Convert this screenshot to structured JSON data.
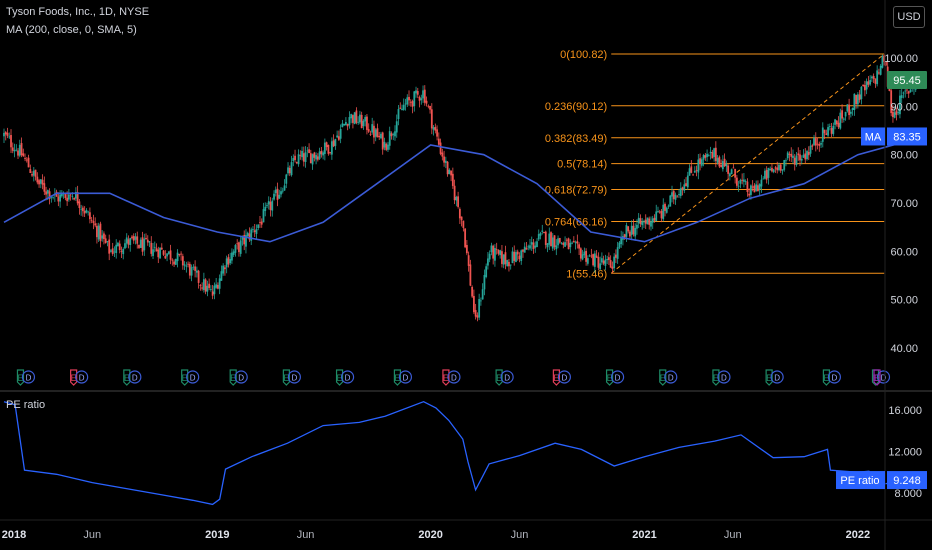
{
  "header": {
    "title": "Tyson Foods, Inc., 1D, NYSE",
    "indicator": "MA (200, close, 0, SMA, 5)",
    "currency": "USD"
  },
  "colors": {
    "up": "#26a69a",
    "down": "#ef5350",
    "ma": "#3b5bd6",
    "fib": "#f7931a",
    "pe": "#2962ff",
    "price_badge": "#2e8b57",
    "ma_badge": "#2962ff",
    "earnings_green": "#1e8a66",
    "earnings_red": "#e03e5a",
    "earnings_purple": "#9c27b0"
  },
  "chart_data": [
    {
      "type": "candlestick",
      "title": "Tyson Foods, Inc., 1D, NYSE",
      "x_range": [
        "2018-01-01",
        "2022-05-01"
      ],
      "ylim": [
        35,
        110
      ],
      "y_ticks": [
        "100.00",
        "90.00",
        "80.00",
        "70.00",
        "60.00",
        "50.00",
        "40.00"
      ],
      "x_ticks": [
        "2018",
        "Jun",
        "2019",
        "Jun",
        "2020",
        "Jun",
        "2021",
        "Jun",
        "2022"
      ],
      "price_path": [
        [
          "2018-01-01",
          84
        ],
        [
          "2018-02-01",
          80
        ],
        [
          "2018-03-01",
          74
        ],
        [
          "2018-04-01",
          71
        ],
        [
          "2018-05-01",
          72
        ],
        [
          "2018-06-01",
          66
        ],
        [
          "2018-07-01",
          60
        ],
        [
          "2018-08-01",
          62
        ],
        [
          "2018-09-01",
          61
        ],
        [
          "2018-10-01",
          60
        ],
        [
          "2018-11-01",
          58
        ],
        [
          "2018-12-01",
          54
        ],
        [
          "2018-12-24",
          51
        ],
        [
          "2019-01-15",
          58
        ],
        [
          "2019-02-15",
          62
        ],
        [
          "2019-03-15",
          66
        ],
        [
          "2019-04-15",
          72
        ],
        [
          "2019-05-15",
          79
        ],
        [
          "2019-06-15",
          80
        ],
        [
          "2019-07-15",
          82
        ],
        [
          "2019-08-15",
          88
        ],
        [
          "2019-09-15",
          86
        ],
        [
          "2019-10-15",
          82
        ],
        [
          "2019-11-15",
          90
        ],
        [
          "2019-12-20",
          93
        ],
        [
          "2020-01-10",
          84
        ],
        [
          "2020-02-01",
          76
        ],
        [
          "2020-02-25",
          66
        ],
        [
          "2020-03-18",
          45
        ],
        [
          "2020-04-10",
          60
        ],
        [
          "2020-05-10",
          58
        ],
        [
          "2020-06-10",
          60
        ],
        [
          "2020-07-10",
          63
        ],
        [
          "2020-08-10",
          62
        ],
        [
          "2020-09-10",
          60
        ],
        [
          "2020-10-10",
          58
        ],
        [
          "2020-11-05",
          57
        ],
        [
          "2020-12-01",
          64
        ],
        [
          "2021-01-01",
          66
        ],
        [
          "2021-02-01",
          68
        ],
        [
          "2021-03-01",
          73
        ],
        [
          "2021-04-01",
          78
        ],
        [
          "2021-05-01",
          80
        ],
        [
          "2021-06-01",
          76
        ],
        [
          "2021-07-01",
          72
        ],
        [
          "2021-08-01",
          76
        ],
        [
          "2021-09-01",
          79
        ],
        [
          "2021-10-01",
          80
        ],
        [
          "2021-11-01",
          84
        ],
        [
          "2021-12-01",
          87
        ],
        [
          "2022-01-01",
          92
        ],
        [
          "2022-02-01",
          96
        ],
        [
          "2022-02-15",
          100
        ],
        [
          "2022-03-01",
          88
        ],
        [
          "2022-03-20",
          92
        ],
        [
          "2022-04-12",
          95.45
        ]
      ],
      "ma_path": [
        [
          "2018-01-01",
          66
        ],
        [
          "2018-04-01",
          72
        ],
        [
          "2018-07-01",
          72
        ],
        [
          "2018-10-01",
          67
        ],
        [
          "2019-01-01",
          64
        ],
        [
          "2019-04-01",
          62
        ],
        [
          "2019-07-01",
          66
        ],
        [
          "2019-10-01",
          74
        ],
        [
          "2020-01-01",
          82
        ],
        [
          "2020-04-01",
          80
        ],
        [
          "2020-07-01",
          74
        ],
        [
          "2020-10-01",
          64
        ],
        [
          "2021-01-01",
          62
        ],
        [
          "2021-04-01",
          66
        ],
        [
          "2021-07-01",
          71
        ],
        [
          "2021-10-01",
          74
        ],
        [
          "2022-01-01",
          80
        ],
        [
          "2022-04-12",
          83.35
        ]
      ],
      "fib": {
        "start": "2020-11-05",
        "end": "2022-02-15",
        "levels": [
          {
            "label": "0(100.82)",
            "value": 100.82
          },
          {
            "label": "0.236(90.12)",
            "value": 90.12
          },
          {
            "label": "0.382(83.49)",
            "value": 83.49
          },
          {
            "label": "0.5(78.14)",
            "value": 78.14
          },
          {
            "label": "0.618(72.79)",
            "value": 72.79
          },
          {
            "label": "0.764(66.16)",
            "value": 66.16
          },
          {
            "label": "1(55.46)",
            "value": 55.46
          }
        ]
      },
      "last_price": {
        "value": 95.45,
        "label": "95.45"
      },
      "ma_last": {
        "name": "MA",
        "value": 83.35,
        "label": "83.35"
      },
      "events": [
        {
          "date": "2018-02-05",
          "type": "E"
        },
        {
          "date": "2018-05-07",
          "type": "E",
          "red": true
        },
        {
          "date": "2018-08-06",
          "type": "E"
        },
        {
          "date": "2018-11-13",
          "type": "E"
        },
        {
          "date": "2019-02-04",
          "type": "E"
        },
        {
          "date": "2019-05-06",
          "type": "E"
        },
        {
          "date": "2019-08-05",
          "type": "E"
        },
        {
          "date": "2019-11-12",
          "type": "E"
        },
        {
          "date": "2020-02-03",
          "type": "E",
          "red": true
        },
        {
          "date": "2020-05-04",
          "type": "E"
        },
        {
          "date": "2020-08-10",
          "type": "E",
          "red": true
        },
        {
          "date": "2020-11-09",
          "type": "E"
        },
        {
          "date": "2021-02-08",
          "type": "E"
        },
        {
          "date": "2021-05-10",
          "type": "E"
        },
        {
          "date": "2021-08-09",
          "type": "E"
        },
        {
          "date": "2021-11-15",
          "type": "E"
        },
        {
          "date": "2022-02-07",
          "type": "E"
        }
      ]
    },
    {
      "type": "line",
      "title": "PE ratio",
      "ylim": [
        6.6,
        17.4
      ],
      "y_ticks": [
        "16.000",
        "12.000",
        "8.000"
      ],
      "series": [
        {
          "name": "PE ratio",
          "points": [
            [
              "2018-01-01",
              16.8
            ],
            [
              "2018-01-20",
              16.5
            ],
            [
              "2018-02-05",
              10.2
            ],
            [
              "2018-04-01",
              9.8
            ],
            [
              "2018-06-01",
              9.0
            ],
            [
              "2018-08-01",
              8.4
            ],
            [
              "2018-10-01",
              7.8
            ],
            [
              "2018-11-20",
              7.3
            ],
            [
              "2018-12-24",
              6.9
            ],
            [
              "2019-01-05",
              7.4
            ],
            [
              "2019-01-15",
              10.3
            ],
            [
              "2019-03-01",
              11.5
            ],
            [
              "2019-05-01",
              12.8
            ],
            [
              "2019-07-01",
              14.5
            ],
            [
              "2019-09-01",
              14.8
            ],
            [
              "2019-10-15",
              15.4
            ],
            [
              "2019-12-20",
              16.8
            ],
            [
              "2020-01-10",
              16.2
            ],
            [
              "2020-02-01",
              15.0
            ],
            [
              "2020-02-25",
              13.2
            ],
            [
              "2020-03-05",
              11.0
            ],
            [
              "2020-03-18",
              8.3
            ],
            [
              "2020-04-10",
              10.8
            ],
            [
              "2020-06-01",
              11.6
            ],
            [
              "2020-08-01",
              12.8
            ],
            [
              "2020-09-15",
              12.2
            ],
            [
              "2020-11-10",
              10.6
            ],
            [
              "2021-01-01",
              11.5
            ],
            [
              "2021-03-01",
              12.4
            ],
            [
              "2021-05-01",
              13.0
            ],
            [
              "2021-06-15",
              13.6
            ],
            [
              "2021-08-09",
              11.4
            ],
            [
              "2021-10-01",
              11.5
            ],
            [
              "2021-11-10",
              12.2
            ],
            [
              "2021-11-15",
              10.2
            ],
            [
              "2022-01-01",
              10.0
            ],
            [
              "2022-01-20",
              10.1
            ],
            [
              "2022-02-07",
              8.8
            ],
            [
              "2022-03-01",
              9.0
            ],
            [
              "2022-04-12",
              9.248
            ]
          ]
        }
      ],
      "last_value": {
        "value": 9.248,
        "label": "9.248"
      }
    }
  ]
}
